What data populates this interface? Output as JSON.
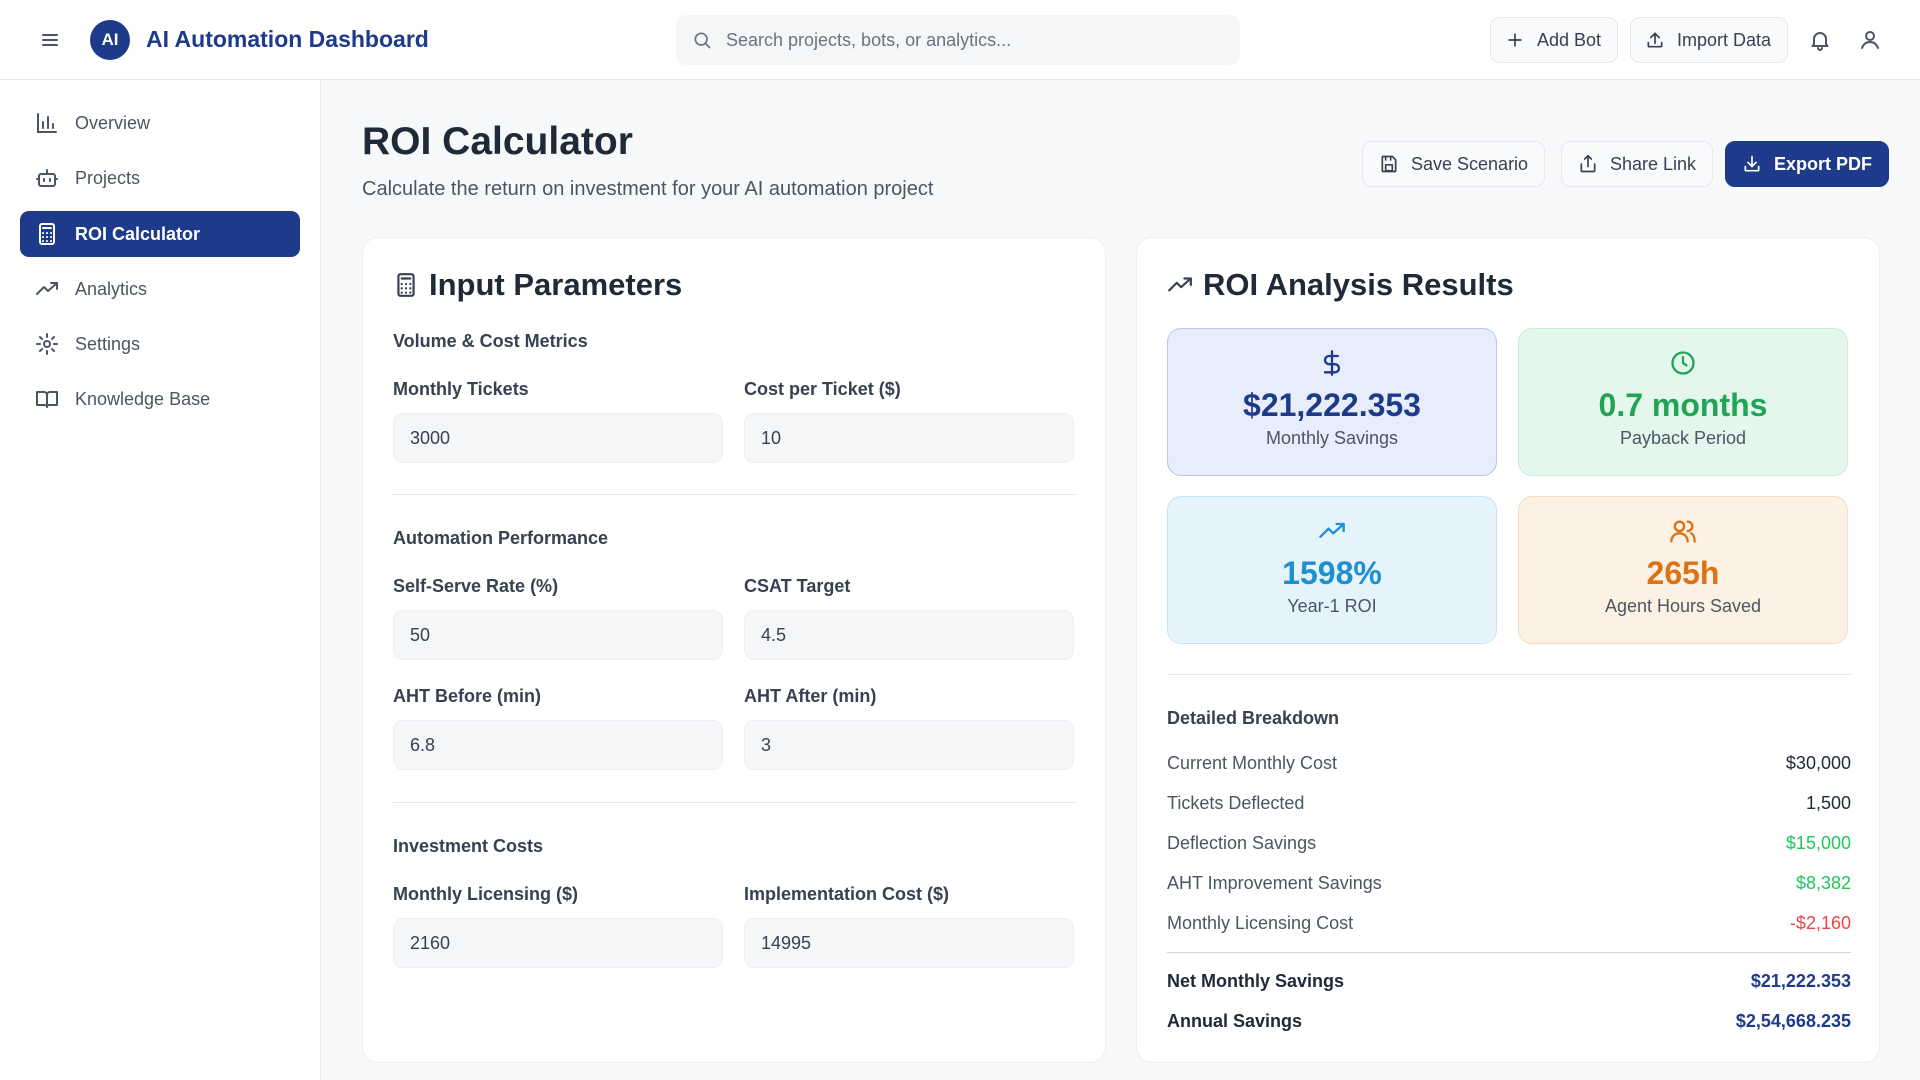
{
  "header": {
    "logo_text": "AI",
    "title": "AI Automation Dashboard",
    "search_placeholder": "Search projects, bots, or analytics...",
    "add_bot_label": "Add Bot",
    "import_label": "Import Data"
  },
  "sidebar": {
    "items": [
      {
        "label": "Overview",
        "icon": "bar-chart-icon"
      },
      {
        "label": "Projects",
        "icon": "bot-icon"
      },
      {
        "label": "ROI Calculator",
        "icon": "calculator-icon",
        "active": true
      },
      {
        "label": "Analytics",
        "icon": "trending-up-icon"
      },
      {
        "label": "Settings",
        "icon": "gear-icon"
      },
      {
        "label": "Knowledge Base",
        "icon": "book-icon"
      }
    ]
  },
  "page": {
    "title": "ROI Calculator",
    "subtitle": "Calculate the return on investment for your AI automation project",
    "save_label": "Save Scenario",
    "share_label": "Share Link",
    "export_label": "Export PDF"
  },
  "inputs": {
    "title": "Input Parameters",
    "sections": {
      "volume": "Volume & Cost Metrics",
      "automation": "Automation Performance",
      "investment": "Investment Costs"
    },
    "fields": {
      "monthly_tickets": {
        "label": "Monthly Tickets",
        "value": "3000"
      },
      "cost_per_ticket": {
        "label": "Cost per Ticket ($)",
        "value": "10"
      },
      "self_serve_rate": {
        "label": "Self-Serve Rate (%)",
        "value": "50"
      },
      "csat_target": {
        "label": "CSAT Target",
        "value": "4.5"
      },
      "aht_before": {
        "label": "AHT Before (min)",
        "value": "6.8"
      },
      "aht_after": {
        "label": "AHT After (min)",
        "value": "3"
      },
      "monthly_licensing": {
        "label": "Monthly Licensing ($)",
        "value": "2160"
      },
      "implementation_cost": {
        "label": "Implementation Cost ($)",
        "value": "14995"
      }
    }
  },
  "results": {
    "title": "ROI Analysis Results",
    "tiles": {
      "monthly_savings": {
        "value": "$21,222.353",
        "label": "Monthly Savings",
        "icon": "dollar-icon",
        "color": "#1e3a8a"
      },
      "payback": {
        "value": "0.7 months",
        "label": "Payback Period",
        "icon": "clock-icon",
        "color": "#22a356"
      },
      "roi": {
        "value": "1598%",
        "label": "Year-1 ROI",
        "icon": "trending-up-icon",
        "color": "#1e8fcf"
      },
      "hours": {
        "value": "265h",
        "label": "Agent Hours Saved",
        "icon": "users-icon",
        "color": "#d97316"
      }
    },
    "breakdown_title": "Detailed Breakdown",
    "breakdown": [
      {
        "label": "Current Monthly Cost",
        "value": "$30,000"
      },
      {
        "label": "Tickets Deflected",
        "value": "1,500"
      },
      {
        "label": "Deflection Savings",
        "value": "$15,000"
      },
      {
        "label": "AHT Improvement Savings",
        "value": "$8,382"
      },
      {
        "label": "Monthly Licensing Cost",
        "value": "-$2,160"
      }
    ],
    "totals": [
      {
        "label": "Net Monthly Savings",
        "value": "$21,222.353"
      },
      {
        "label": "Annual Savings",
        "value": "$2,54,668.235"
      }
    ]
  }
}
